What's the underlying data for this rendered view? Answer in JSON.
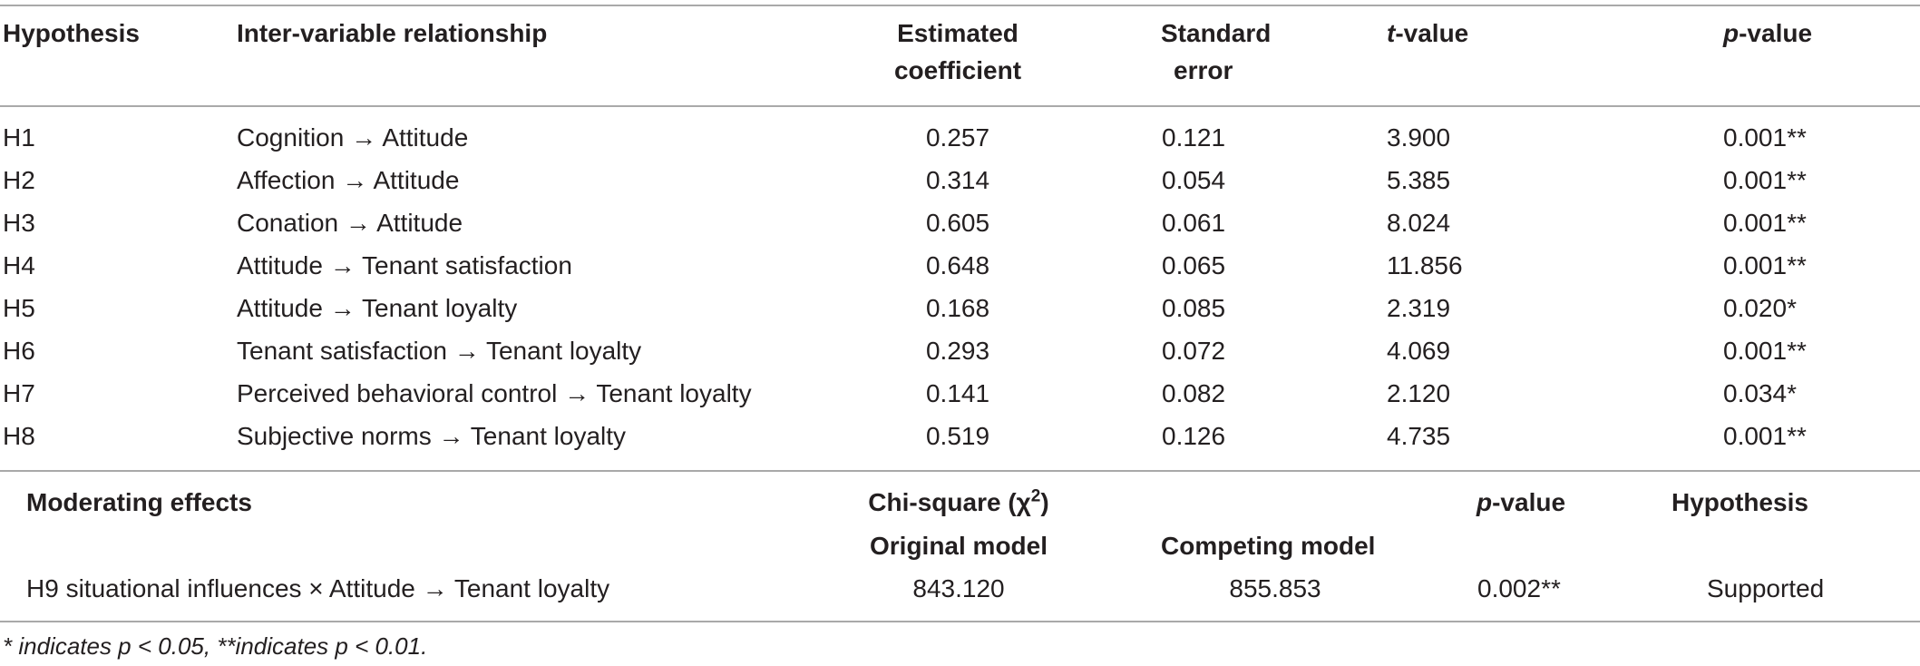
{
  "headers": {
    "hypothesis": "Hypothesis",
    "relationship": "Inter-variable relationship",
    "estimate_1": "Estimated",
    "estimate_2": "coefficient",
    "se_1": "Standard",
    "se_2": "error",
    "t_letter": "t",
    "t_rest": "-value",
    "p_letter": "p",
    "p_rest": "-value"
  },
  "rows": [
    {
      "hyp": "H1",
      "rel": "Cognition → Attitude",
      "est": "0.257",
      "se": "0.121",
      "t": "3.900",
      "p": "0.001**"
    },
    {
      "hyp": "H2",
      "rel": "Affection → Attitude",
      "est": "0.314",
      "se": "0.054",
      "t": "5.385",
      "p": "0.001**"
    },
    {
      "hyp": "H3",
      "rel": "Conation → Attitude",
      "est": "0.605",
      "se": "0.061",
      "t": "8.024",
      "p": "0.001**"
    },
    {
      "hyp": "H4",
      "rel": "Attitude → Tenant satisfaction",
      "est": "0.648",
      "se": "0.065",
      "t": "11.856",
      "p": "0.001**"
    },
    {
      "hyp": "H5",
      "rel": "Attitude → Tenant loyalty",
      "est": "0.168",
      "se": "0.085",
      "t": "2.319",
      "p": "0.020*"
    },
    {
      "hyp": "H6",
      "rel": "Tenant satisfaction → Tenant loyalty",
      "est": "0.293",
      "se": "0.072",
      "t": "4.069",
      "p": "0.001**"
    },
    {
      "hyp": "H7",
      "rel": "Perceived behavioral control → Tenant loyalty",
      "est": "0.141",
      "se": "0.082",
      "t": "2.120",
      "p": "0.034*"
    },
    {
      "hyp": "H8",
      "rel": "Subjective norms → Tenant loyalty",
      "est": "0.519",
      "se": "0.126",
      "t": "4.735",
      "p": "0.001**"
    }
  ],
  "moderating": {
    "title": "Moderating effects",
    "chi_label": "Chi-square (χ",
    "chi_sup": "2",
    "chi_close": ")",
    "p_letter": "p",
    "p_rest": "-value",
    "hypothesis_header": "Hypothesis",
    "original_model": "Original model",
    "competing_model": "Competing model",
    "row": {
      "effect": "H9 situational influences × Attitude → Tenant loyalty",
      "original": "843.120",
      "competing": "855.853",
      "p": "0.002**",
      "result": "Supported"
    }
  },
  "footnote": "* indicates p < 0.05, **indicates p < 0.01."
}
